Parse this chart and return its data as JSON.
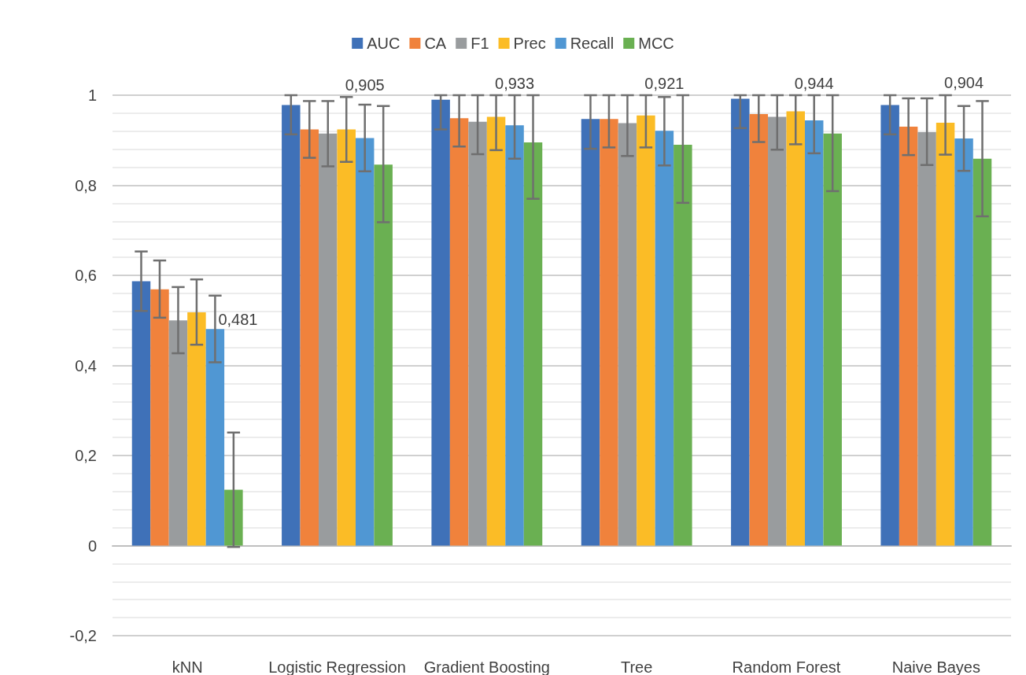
{
  "chart_data": {
    "type": "bar",
    "categories": [
      "kNN",
      "Logistic Regression",
      "Gradient Boosting",
      "Tree",
      "Random Forest",
      "Naive Bayes"
    ],
    "series": [
      {
        "name": "AUC",
        "color": "#3f71b8",
        "values": [
          0.587,
          0.978,
          0.99,
          0.947,
          0.992,
          0.978
        ],
        "errors": [
          [
            0.521,
            0.653
          ],
          [
            0.913,
            1
          ],
          [
            0.924,
            1
          ],
          [
            0.881,
            1
          ],
          [
            0.927,
            1
          ],
          [
            0.913,
            1
          ]
        ]
      },
      {
        "name": "CA",
        "color": "#f0823c",
        "values": [
          0.569,
          0.924,
          0.949,
          0.947,
          0.958,
          0.93
        ],
        "errors": [
          [
            0.506,
            0.633
          ],
          [
            0.861,
            0.987
          ],
          [
            0.886,
            1
          ],
          [
            0.884,
            1
          ],
          [
            0.896,
            1
          ],
          [
            0.867,
            0.993
          ]
        ]
      },
      {
        "name": "F1",
        "color": "#999c9e",
        "values": [
          0.5,
          0.915,
          0.941,
          0.938,
          0.952,
          0.918
        ],
        "errors": [
          [
            0.427,
            0.574
          ],
          [
            0.842,
            0.987
          ],
          [
            0.869,
            1
          ],
          [
            0.865,
            1
          ],
          [
            0.879,
            1
          ],
          [
            0.845,
            0.993
          ]
        ]
      },
      {
        "name": "Prec",
        "color": "#fbbc26",
        "values": [
          0.518,
          0.924,
          0.952,
          0.955,
          0.964,
          0.939
        ],
        "errors": [
          [
            0.446,
            0.591
          ],
          [
            0.852,
            0.996
          ],
          [
            0.878,
            1
          ],
          [
            0.884,
            1
          ],
          [
            0.891,
            1
          ],
          [
            0.868,
            1
          ]
        ]
      },
      {
        "name": "Recall",
        "color": "#5097d3",
        "values": [
          0.481,
          0.905,
          0.933,
          0.921,
          0.944,
          0.904
        ],
        "errors": [
          [
            0.407,
            0.555
          ],
          [
            0.831,
            0.979
          ],
          [
            0.859,
            1
          ],
          [
            0.844,
            0.996
          ],
          [
            0.871,
            1
          ],
          [
            0.832,
            0.976
          ]
        ],
        "value_labels": [
          "0,481",
          "0,905",
          "0,933",
          "0,921",
          "0,944",
          "0,904"
        ]
      },
      {
        "name": "MCC",
        "color": "#6ab052",
        "values": [
          0.124,
          0.846,
          0.895,
          0.89,
          0.915,
          0.859
        ],
        "errors": [
          [
            -0.003,
            0.251
          ],
          [
            0.718,
            0.976
          ],
          [
            0.77,
            1
          ],
          [
            0.761,
            1
          ],
          [
            0.787,
            1
          ],
          [
            0.731,
            0.987
          ]
        ]
      }
    ],
    "ylim": [
      -0.2,
      1
    ],
    "yticks": [
      {
        "value": -0.2,
        "label": "-0,2"
      },
      0,
      {
        "value": 0.2,
        "label": "0,2"
      },
      {
        "value": 0.4,
        "label": "0,4"
      },
      {
        "value": 0.6,
        "label": "0,6"
      },
      {
        "value": 0.8,
        "label": "0,8"
      },
      1
    ],
    "grid": "y",
    "legend": "top"
  }
}
